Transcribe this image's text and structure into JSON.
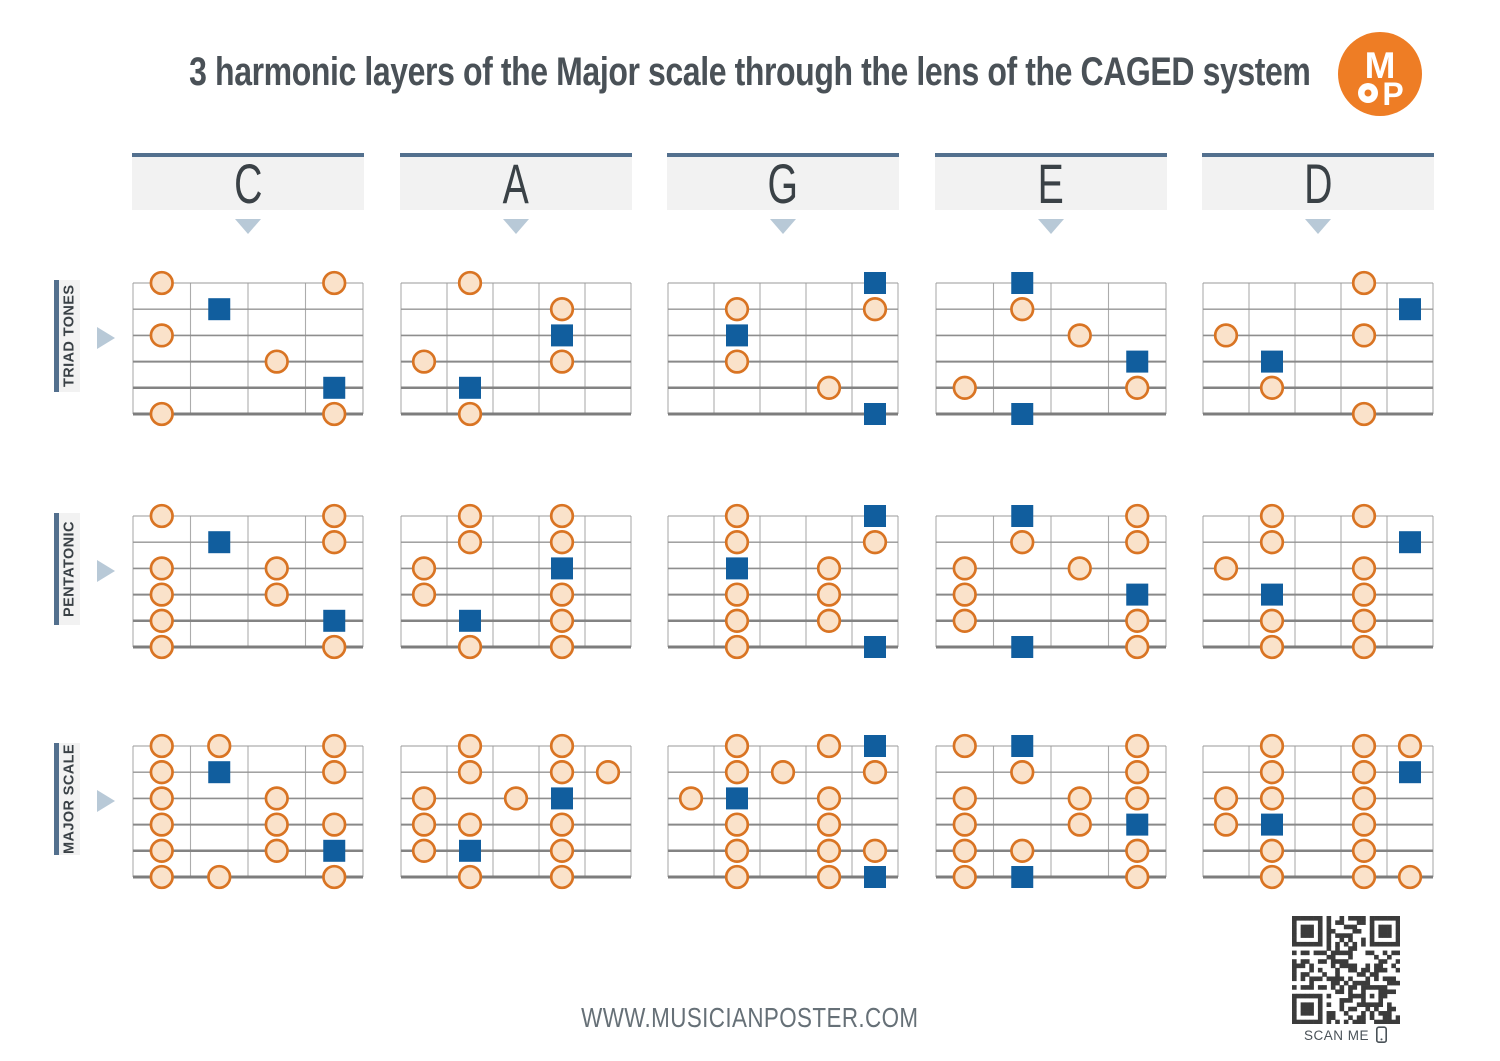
{
  "title": "3 harmonic layers of the Major scale through the lens of the CAGED system",
  "brand": {
    "monogram_top": "M",
    "monogram_bottom": "P"
  },
  "footer": {
    "website": "WWW.MUSICIANPOSTER.COM",
    "scan_me": "SCAN ME"
  },
  "colors": {
    "tone_fill": "#FAE2CA",
    "tone_stroke": "#D97423",
    "root_fill": "#115E9E",
    "header_bar": "#53708E",
    "arrow": "#B8C9D7",
    "box_bg": "#F2F2F2",
    "text_dark": "#3A4146",
    "logo_orange": "#EE7D25",
    "qr_dark": "#3B3B3B"
  },
  "columns": [
    {
      "label": "C",
      "frets": 4
    },
    {
      "label": "A",
      "frets": 5
    },
    {
      "label": "G",
      "frets": 5
    },
    {
      "label": "E",
      "frets": 4
    },
    {
      "label": "D",
      "frets": 5
    }
  ],
  "rows": [
    {
      "label": "TRIAD TONES"
    },
    {
      "label": "PENTATONIC"
    },
    {
      "label": "MAJOR SCALE"
    }
  ],
  "dot_legend": {
    "tone": "scale tone (orange circle)",
    "root": "root note (blue square)"
  },
  "diagrams": [
    {
      "row": "TRIAD TONES",
      "column": "C",
      "dots": [
        [
          1,
          1,
          "tone"
        ],
        [
          1,
          4,
          "tone"
        ],
        [
          2,
          2,
          "root"
        ],
        [
          3,
          1,
          "tone"
        ],
        [
          4,
          3,
          "tone"
        ],
        [
          5,
          4,
          "root"
        ],
        [
          6,
          1,
          "tone"
        ],
        [
          6,
          4,
          "tone"
        ]
      ]
    },
    {
      "row": "TRIAD TONES",
      "column": "A",
      "dots": [
        [
          1,
          2,
          "tone"
        ],
        [
          2,
          4,
          "tone"
        ],
        [
          3,
          4,
          "root"
        ],
        [
          4,
          1,
          "tone"
        ],
        [
          4,
          4,
          "tone"
        ],
        [
          5,
          2,
          "root"
        ],
        [
          6,
          2,
          "tone"
        ]
      ]
    },
    {
      "row": "TRIAD TONES",
      "column": "G",
      "dots": [
        [
          1,
          5,
          "root"
        ],
        [
          2,
          2,
          "tone"
        ],
        [
          2,
          5,
          "tone"
        ],
        [
          3,
          2,
          "root"
        ],
        [
          4,
          2,
          "tone"
        ],
        [
          5,
          4,
          "tone"
        ],
        [
          6,
          5,
          "root"
        ]
      ]
    },
    {
      "row": "TRIAD TONES",
      "column": "E",
      "dots": [
        [
          1,
          2,
          "root"
        ],
        [
          2,
          2,
          "tone"
        ],
        [
          3,
          3,
          "tone"
        ],
        [
          4,
          4,
          "root"
        ],
        [
          5,
          1,
          "tone"
        ],
        [
          5,
          4,
          "tone"
        ],
        [
          6,
          2,
          "root"
        ]
      ]
    },
    {
      "row": "TRIAD TONES",
      "column": "D",
      "dots": [
        [
          1,
          4,
          "tone"
        ],
        [
          2,
          5,
          "root"
        ],
        [
          3,
          1,
          "tone"
        ],
        [
          3,
          4,
          "tone"
        ],
        [
          4,
          2,
          "root"
        ],
        [
          5,
          2,
          "tone"
        ],
        [
          6,
          4,
          "tone"
        ]
      ]
    },
    {
      "row": "PENTATONIC",
      "column": "C",
      "dots": [
        [
          1,
          1,
          "tone"
        ],
        [
          1,
          4,
          "tone"
        ],
        [
          2,
          2,
          "root"
        ],
        [
          2,
          4,
          "tone"
        ],
        [
          3,
          1,
          "tone"
        ],
        [
          3,
          3,
          "tone"
        ],
        [
          4,
          1,
          "tone"
        ],
        [
          4,
          3,
          "tone"
        ],
        [
          5,
          1,
          "tone"
        ],
        [
          5,
          4,
          "root"
        ],
        [
          6,
          1,
          "tone"
        ],
        [
          6,
          4,
          "tone"
        ]
      ]
    },
    {
      "row": "PENTATONIC",
      "column": "A",
      "dots": [
        [
          1,
          2,
          "tone"
        ],
        [
          1,
          4,
          "tone"
        ],
        [
          2,
          2,
          "tone"
        ],
        [
          2,
          4,
          "tone"
        ],
        [
          3,
          1,
          "tone"
        ],
        [
          3,
          4,
          "root"
        ],
        [
          4,
          1,
          "tone"
        ],
        [
          4,
          4,
          "tone"
        ],
        [
          5,
          2,
          "root"
        ],
        [
          5,
          4,
          "tone"
        ],
        [
          6,
          2,
          "tone"
        ],
        [
          6,
          4,
          "tone"
        ]
      ]
    },
    {
      "row": "PENTATONIC",
      "column": "G",
      "dots": [
        [
          1,
          2,
          "tone"
        ],
        [
          1,
          5,
          "root"
        ],
        [
          2,
          2,
          "tone"
        ],
        [
          2,
          5,
          "tone"
        ],
        [
          3,
          2,
          "root"
        ],
        [
          3,
          4,
          "tone"
        ],
        [
          4,
          2,
          "tone"
        ],
        [
          4,
          4,
          "tone"
        ],
        [
          5,
          2,
          "tone"
        ],
        [
          5,
          4,
          "tone"
        ],
        [
          6,
          2,
          "tone"
        ],
        [
          6,
          5,
          "root"
        ]
      ]
    },
    {
      "row": "PENTATONIC",
      "column": "E",
      "dots": [
        [
          1,
          2,
          "root"
        ],
        [
          1,
          4,
          "tone"
        ],
        [
          2,
          2,
          "tone"
        ],
        [
          2,
          4,
          "tone"
        ],
        [
          3,
          1,
          "tone"
        ],
        [
          3,
          3,
          "tone"
        ],
        [
          4,
          1,
          "tone"
        ],
        [
          4,
          4,
          "root"
        ],
        [
          5,
          1,
          "tone"
        ],
        [
          5,
          4,
          "tone"
        ],
        [
          6,
          2,
          "root"
        ],
        [
          6,
          4,
          "tone"
        ]
      ]
    },
    {
      "row": "PENTATONIC",
      "column": "D",
      "dots": [
        [
          1,
          2,
          "tone"
        ],
        [
          1,
          4,
          "tone"
        ],
        [
          2,
          2,
          "tone"
        ],
        [
          2,
          5,
          "root"
        ],
        [
          3,
          1,
          "tone"
        ],
        [
          3,
          4,
          "tone"
        ],
        [
          4,
          2,
          "root"
        ],
        [
          4,
          4,
          "tone"
        ],
        [
          5,
          2,
          "tone"
        ],
        [
          5,
          4,
          "tone"
        ],
        [
          6,
          2,
          "tone"
        ],
        [
          6,
          4,
          "tone"
        ]
      ]
    },
    {
      "row": "MAJOR SCALE",
      "column": "C",
      "dots": [
        [
          1,
          1,
          "tone"
        ],
        [
          1,
          2,
          "tone"
        ],
        [
          1,
          4,
          "tone"
        ],
        [
          2,
          1,
          "tone"
        ],
        [
          2,
          2,
          "root"
        ],
        [
          2,
          4,
          "tone"
        ],
        [
          3,
          1,
          "tone"
        ],
        [
          3,
          3,
          "tone"
        ],
        [
          4,
          1,
          "tone"
        ],
        [
          4,
          3,
          "tone"
        ],
        [
          4,
          4,
          "tone"
        ],
        [
          5,
          1,
          "tone"
        ],
        [
          5,
          3,
          "tone"
        ],
        [
          5,
          4,
          "root"
        ],
        [
          6,
          1,
          "tone"
        ],
        [
          6,
          2,
          "tone"
        ],
        [
          6,
          4,
          "tone"
        ]
      ]
    },
    {
      "row": "MAJOR SCALE",
      "column": "A",
      "dots": [
        [
          1,
          2,
          "tone"
        ],
        [
          1,
          4,
          "tone"
        ],
        [
          2,
          2,
          "tone"
        ],
        [
          2,
          4,
          "tone"
        ],
        [
          2,
          5,
          "tone"
        ],
        [
          3,
          1,
          "tone"
        ],
        [
          3,
          3,
          "tone"
        ],
        [
          3,
          4,
          "root"
        ],
        [
          4,
          1,
          "tone"
        ],
        [
          4,
          2,
          "tone"
        ],
        [
          4,
          4,
          "tone"
        ],
        [
          5,
          1,
          "tone"
        ],
        [
          5,
          2,
          "root"
        ],
        [
          5,
          4,
          "tone"
        ],
        [
          6,
          2,
          "tone"
        ],
        [
          6,
          4,
          "tone"
        ]
      ]
    },
    {
      "row": "MAJOR SCALE",
      "column": "G",
      "dots": [
        [
          1,
          2,
          "tone"
        ],
        [
          1,
          4,
          "tone"
        ],
        [
          1,
          5,
          "root"
        ],
        [
          2,
          2,
          "tone"
        ],
        [
          2,
          3,
          "tone"
        ],
        [
          2,
          5,
          "tone"
        ],
        [
          3,
          1,
          "tone"
        ],
        [
          3,
          2,
          "root"
        ],
        [
          3,
          4,
          "tone"
        ],
        [
          4,
          2,
          "tone"
        ],
        [
          4,
          4,
          "tone"
        ],
        [
          5,
          2,
          "tone"
        ],
        [
          5,
          4,
          "tone"
        ],
        [
          5,
          5,
          "tone"
        ],
        [
          6,
          2,
          "tone"
        ],
        [
          6,
          4,
          "tone"
        ],
        [
          6,
          5,
          "root"
        ]
      ]
    },
    {
      "row": "MAJOR SCALE",
      "column": "E",
      "dots": [
        [
          1,
          1,
          "tone"
        ],
        [
          1,
          2,
          "root"
        ],
        [
          1,
          4,
          "tone"
        ],
        [
          2,
          2,
          "tone"
        ],
        [
          2,
          4,
          "tone"
        ],
        [
          3,
          1,
          "tone"
        ],
        [
          3,
          3,
          "tone"
        ],
        [
          3,
          4,
          "tone"
        ],
        [
          4,
          1,
          "tone"
        ],
        [
          4,
          3,
          "tone"
        ],
        [
          4,
          4,
          "root"
        ],
        [
          5,
          1,
          "tone"
        ],
        [
          5,
          2,
          "tone"
        ],
        [
          5,
          4,
          "tone"
        ],
        [
          6,
          1,
          "tone"
        ],
        [
          6,
          2,
          "root"
        ],
        [
          6,
          4,
          "tone"
        ]
      ]
    },
    {
      "row": "MAJOR SCALE",
      "column": "D",
      "dots": [
        [
          1,
          2,
          "tone"
        ],
        [
          1,
          4,
          "tone"
        ],
        [
          1,
          5,
          "tone"
        ],
        [
          2,
          2,
          "tone"
        ],
        [
          2,
          4,
          "tone"
        ],
        [
          2,
          5,
          "root"
        ],
        [
          3,
          1,
          "tone"
        ],
        [
          3,
          2,
          "tone"
        ],
        [
          3,
          4,
          "tone"
        ],
        [
          4,
          1,
          "tone"
        ],
        [
          4,
          2,
          "root"
        ],
        [
          4,
          4,
          "tone"
        ],
        [
          5,
          2,
          "tone"
        ],
        [
          5,
          4,
          "tone"
        ],
        [
          6,
          2,
          "tone"
        ],
        [
          6,
          4,
          "tone"
        ],
        [
          6,
          5,
          "tone"
        ]
      ]
    }
  ]
}
